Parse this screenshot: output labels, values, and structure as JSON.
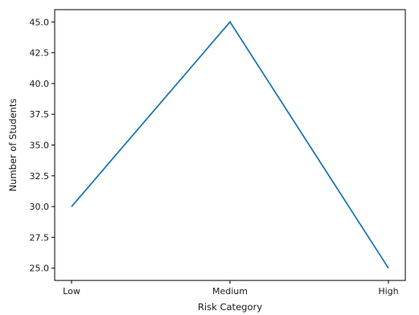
{
  "chart_data": {
    "type": "line",
    "title": "",
    "xlabel": "Risk Category",
    "ylabel": "Number of Students",
    "categories": [
      "Low",
      "Medium",
      "High"
    ],
    "series": [
      {
        "values": [
          30,
          45,
          25
        ],
        "color": "#1f77b4"
      }
    ],
    "ylim": [
      24.0,
      46.0
    ],
    "yticks": [
      25.0,
      27.5,
      30.0,
      32.5,
      35.0,
      37.5,
      40.0,
      42.5,
      45.0
    ],
    "ytick_labels": [
      "25.0",
      "27.5",
      "30.0",
      "32.5",
      "35.0",
      "37.5",
      "40.0",
      "42.5",
      "45.0"
    ],
    "grid": false,
    "legend": "none"
  }
}
